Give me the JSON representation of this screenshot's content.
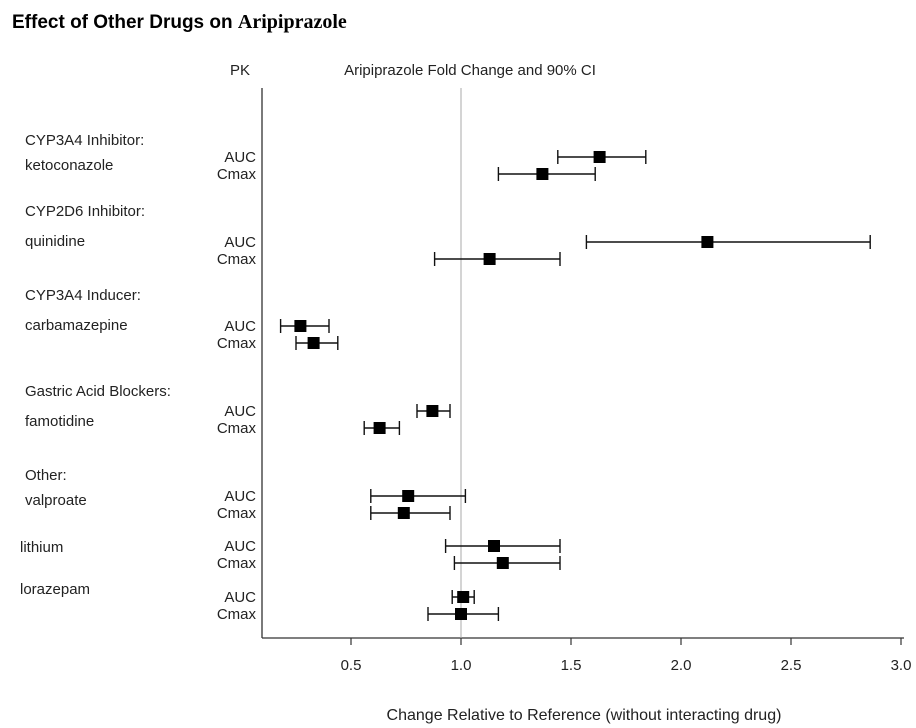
{
  "chart_data": {
    "type": "forest",
    "title_part1": "Effect of Other Drugs on ",
    "title_part2": "Aripiprazole",
    "pk_header": "PK",
    "plot_header": "Aripiprazole Fold Change and 90% CI",
    "xlabel": "Change Relative to Reference (without interacting drug)",
    "xlim": [
      0.1,
      3.0
    ],
    "xticks": [
      "0.5",
      "1.0",
      "1.5",
      "2.0",
      "2.5",
      "3.0"
    ],
    "reference_line": 1.0,
    "groups": [
      {
        "category": "CYP3A4 Inhibitor:",
        "drug": "ketoconazole",
        "rows": [
          {
            "pk": "AUC",
            "estimate": 1.63,
            "lower": 1.44,
            "upper": 1.84
          },
          {
            "pk": "Cmax",
            "estimate": 1.37,
            "lower": 1.17,
            "upper": 1.61
          }
        ]
      },
      {
        "category": "CYP2D6 Inhibitor:",
        "drug": "quinidine",
        "rows": [
          {
            "pk": "AUC",
            "estimate": 2.12,
            "lower": 1.57,
            "upper": 2.86
          },
          {
            "pk": "Cmax",
            "estimate": 1.13,
            "lower": 0.88,
            "upper": 1.45
          }
        ]
      },
      {
        "category": "CYP3A4 Inducer:",
        "drug": "carbamazepine",
        "rows": [
          {
            "pk": "AUC",
            "estimate": 0.27,
            "lower": 0.18,
            "upper": 0.4
          },
          {
            "pk": "Cmax",
            "estimate": 0.33,
            "lower": 0.25,
            "upper": 0.44
          }
        ]
      },
      {
        "category": "Gastric Acid Blockers:",
        "drug": "famotidine",
        "rows": [
          {
            "pk": "AUC",
            "estimate": 0.87,
            "lower": 0.8,
            "upper": 0.95
          },
          {
            "pk": "Cmax",
            "estimate": 0.63,
            "lower": 0.56,
            "upper": 0.72
          }
        ]
      },
      {
        "category": "Other:",
        "drug": "valproate",
        "rows": [
          {
            "pk": "AUC",
            "estimate": 0.76,
            "lower": 0.59,
            "upper": 1.02
          },
          {
            "pk": "Cmax",
            "estimate": 0.74,
            "lower": 0.59,
            "upper": 0.95
          }
        ]
      },
      {
        "category": "",
        "drug": "lithium",
        "rows": [
          {
            "pk": "AUC",
            "estimate": 1.15,
            "lower": 0.93,
            "upper": 1.45
          },
          {
            "pk": "Cmax",
            "estimate": 1.19,
            "lower": 0.97,
            "upper": 1.45
          }
        ]
      },
      {
        "category": "",
        "drug": "lorazepam",
        "rows": [
          {
            "pk": "AUC",
            "estimate": 1.01,
            "lower": 0.96,
            "upper": 1.06
          },
          {
            "pk": "Cmax",
            "estimate": 1.0,
            "lower": 0.85,
            "upper": 1.17
          }
        ]
      }
    ]
  }
}
